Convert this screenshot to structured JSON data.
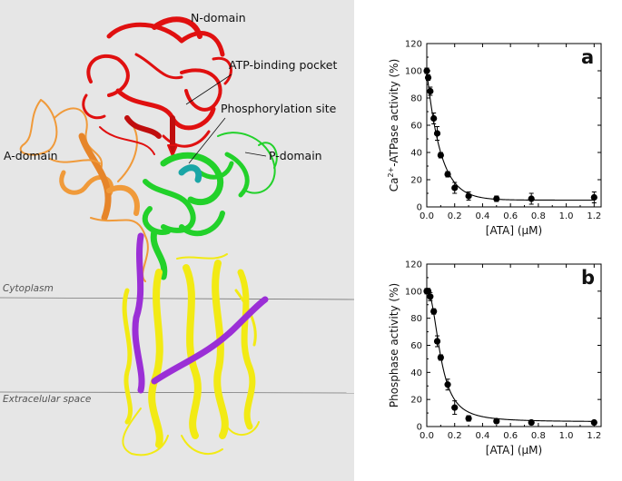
{
  "structure": {
    "labels": {
      "n_domain": "N-domain",
      "atp_pocket": "ATP-binding pocket",
      "phosphorylation": "Phosphorylation site",
      "a_domain": "A-domain",
      "p_domain": "P-domain",
      "cytoplasm": "Cytoplasm",
      "extracellular": "Extracelular space"
    },
    "colors": {
      "background": "#e6e6e6",
      "n_domain": "#e01010",
      "a_domain": "#f09a3a",
      "p_domain": "#22d12a",
      "phosphorylation_site": "#1aa6a6",
      "transmembrane": "#f2ea14",
      "linker": "#9b2fd6",
      "membrane_line": "#777777"
    }
  },
  "chart_data": [
    {
      "type": "scatter",
      "panel_letter": "a",
      "ylabel_prefix": "Ca",
      "ylabel_sup": "2+",
      "ylabel_suffix": "-ATPase activity (%)",
      "xlabel_main": "[ATA] (",
      "xlabel_unit": "μM",
      "xlabel_close": ")",
      "xlim": [
        0,
        1.25
      ],
      "ylim": [
        0,
        120
      ],
      "xticks": [
        0.0,
        0.2,
        0.4,
        0.6,
        0.8,
        1.0,
        1.2
      ],
      "xtick_labels": [
        "0.0",
        "0.2",
        "0.4",
        "0.6",
        "0.8",
        "1.0",
        "1.2"
      ],
      "yticks": [
        0,
        20,
        40,
        60,
        80,
        100,
        120
      ],
      "ytick_labels": [
        "0",
        "20",
        "40",
        "60",
        "80",
        "100",
        "120"
      ],
      "points": [
        {
          "x": 0.0,
          "y": 100,
          "err": 2
        },
        {
          "x": 0.01,
          "y": 95,
          "err": 2
        },
        {
          "x": 0.025,
          "y": 85,
          "err": 3
        },
        {
          "x": 0.05,
          "y": 65,
          "err": 4
        },
        {
          "x": 0.075,
          "y": 54,
          "err": 5
        },
        {
          "x": 0.1,
          "y": 38,
          "err": 2
        },
        {
          "x": 0.15,
          "y": 24,
          "err": 2
        },
        {
          "x": 0.2,
          "y": 14,
          "err": 4
        },
        {
          "x": 0.3,
          "y": 8,
          "err": 3
        },
        {
          "x": 0.5,
          "y": 6,
          "err": 2
        },
        {
          "x": 0.75,
          "y": 6,
          "err": 4
        },
        {
          "x": 1.2,
          "y": 7,
          "err": 4
        }
      ],
      "fit": {
        "y0": 5,
        "amplitude": 95,
        "k": 10
      },
      "colors": {
        "marker": "#000000",
        "line": "#000000"
      }
    },
    {
      "type": "scatter",
      "panel_letter": "b",
      "ylabel": "Phosphase activity (%)",
      "xlabel_main": "[ATA] (",
      "xlabel_unit": "μM",
      "xlabel_close": ")",
      "xlim": [
        0,
        1.25
      ],
      "ylim": [
        0,
        120
      ],
      "xticks": [
        0.0,
        0.2,
        0.4,
        0.6,
        0.8,
        1.0,
        1.2
      ],
      "xtick_labels": [
        "0.0",
        "0.2",
        "0.4",
        "0.6",
        "0.8",
        "1.0",
        "1.2"
      ],
      "yticks": [
        0,
        20,
        40,
        60,
        80,
        100,
        120
      ],
      "ytick_labels": [
        "0",
        "20",
        "40",
        "60",
        "80",
        "100",
        "120"
      ],
      "points": [
        {
          "x": 0.0,
          "y": 100,
          "err": 2
        },
        {
          "x": 0.01,
          "y": 100,
          "err": 2
        },
        {
          "x": 0.025,
          "y": 96,
          "err": 3
        },
        {
          "x": 0.05,
          "y": 85,
          "err": 2
        },
        {
          "x": 0.075,
          "y": 63,
          "err": 4
        },
        {
          "x": 0.1,
          "y": 51,
          "err": 2
        },
        {
          "x": 0.15,
          "y": 31,
          "err": 4
        },
        {
          "x": 0.2,
          "y": 14,
          "err": 5
        },
        {
          "x": 0.3,
          "y": 6,
          "err": 2
        },
        {
          "x": 0.5,
          "y": 4,
          "err": 1
        },
        {
          "x": 0.75,
          "y": 3,
          "err": 1
        },
        {
          "x": 1.2,
          "y": 3,
          "err": 1
        }
      ],
      "fit": {
        "y0": 3.5,
        "amplitude": 96.5,
        "ec50": 0.1,
        "hill": 2.3
      },
      "colors": {
        "marker": "#000000",
        "line": "#000000"
      }
    }
  ]
}
